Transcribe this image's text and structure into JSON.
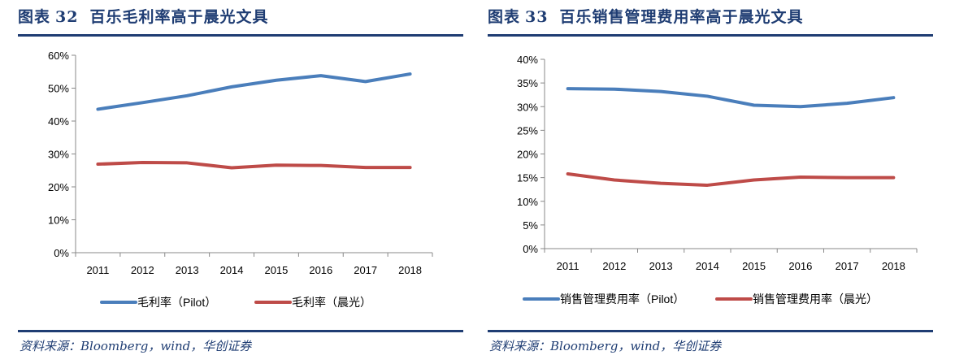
{
  "charts_meta": [
    {
      "figure_label": "图表",
      "figure_num": "32",
      "title": "百乐毛利率高于晨光文具",
      "source": "资料来源：Bloomberg，wind，华创证券"
    },
    {
      "figure_label": "图表",
      "figure_num": "33",
      "title": "百乐销售管理费用率高于晨光文具",
      "source": "资料来源：Bloomberg，wind，华创证券"
    }
  ],
  "colors": {
    "title": "#1f3d73",
    "series1": "#4a7ebb",
    "series2": "#be4b48"
  },
  "chart_data": [
    {
      "type": "line",
      "title": "百乐毛利率高于晨光文具",
      "categories": [
        "2011",
        "2012",
        "2013",
        "2014",
        "2015",
        "2016",
        "2017",
        "2018"
      ],
      "ylim": [
        0,
        60
      ],
      "yticks": [
        "0%",
        "10%",
        "20%",
        "30%",
        "40%",
        "50%",
        "60%"
      ],
      "ytick_values": [
        0,
        10,
        20,
        30,
        40,
        50,
        60
      ],
      "grid": false,
      "legend": "bottom",
      "series": [
        {
          "name": "毛利率（Pilot）",
          "values": [
            43.6,
            45.6,
            47.7,
            50.4,
            52.4,
            53.8,
            52.0,
            54.3
          ]
        },
        {
          "name": "毛利率（晨光）",
          "values": [
            26.9,
            27.4,
            27.3,
            25.8,
            26.6,
            26.5,
            25.9,
            25.9
          ]
        }
      ]
    },
    {
      "type": "line",
      "title": "百乐销售管理费用率高于晨光文具",
      "categories": [
        "2011",
        "2012",
        "2013",
        "2014",
        "2015",
        "2016",
        "2017",
        "2018"
      ],
      "ylim": [
        0,
        40
      ],
      "yticks": [
        "0%",
        "5%",
        "10%",
        "15%",
        "20%",
        "25%",
        "30%",
        "35%",
        "40%"
      ],
      "ytick_values": [
        0,
        5,
        10,
        15,
        20,
        25,
        30,
        35,
        40
      ],
      "grid": false,
      "legend": "bottom",
      "series": [
        {
          "name": "销售管理费用率（Pilot）",
          "values": [
            33.8,
            33.7,
            33.2,
            32.2,
            30.3,
            30.0,
            30.7,
            31.9
          ]
        },
        {
          "name": "销售管理费用率（晨光）",
          "values": [
            15.8,
            14.5,
            13.8,
            13.4,
            14.5,
            15.1,
            15.0,
            15.0
          ]
        }
      ]
    }
  ]
}
